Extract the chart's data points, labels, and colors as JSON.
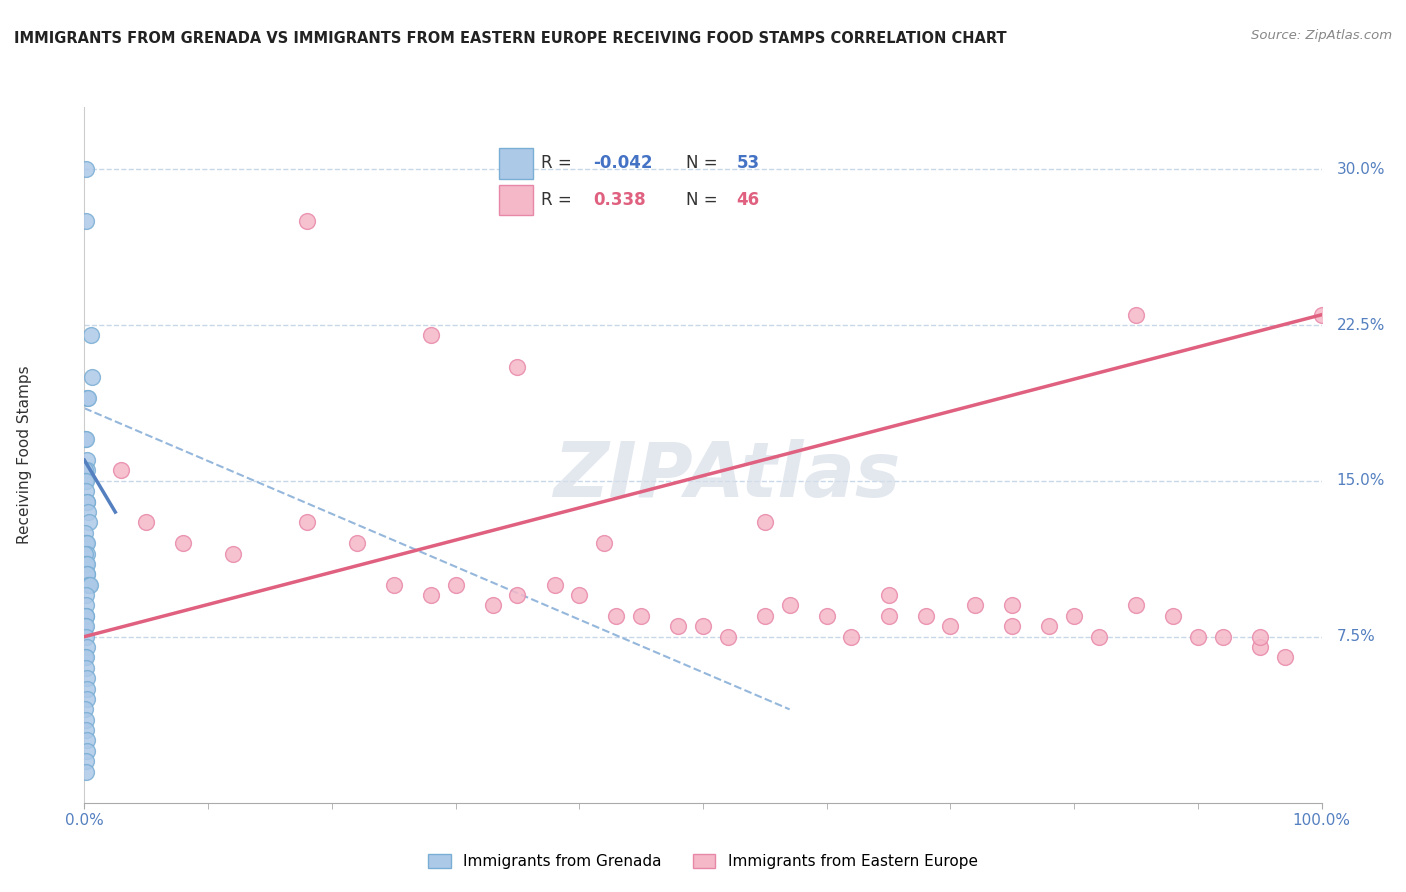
{
  "title": "IMMIGRANTS FROM GRENADA VS IMMIGRANTS FROM EASTERN EUROPE RECEIVING FOOD STAMPS CORRELATION CHART",
  "source": "Source: ZipAtlas.com",
  "ylabel": "Receiving Food Stamps",
  "xlim": [
    0.0,
    100.0
  ],
  "ylim": [
    -0.005,
    0.33
  ],
  "yticks": [
    0.075,
    0.15,
    0.225,
    0.3
  ],
  "ytick_labels": [
    "7.5%",
    "15.0%",
    "22.5%",
    "30.0%"
  ],
  "xtick_labels": [
    "0.0%",
    "100.0%"
  ],
  "series1_color": "#adc9e8",
  "series1_edge": "#7aaed4",
  "series2_color": "#f5b8c8",
  "series2_edge": "#e888a8",
  "trendline1_color": "#5580c0",
  "trendline2_color": "#e06080",
  "diag_color": "#8ab0d8",
  "watermark": "ZIPAtlas",
  "watermark_color": "#d8dfe8",
  "background": "#ffffff",
  "grid_color": "#c8d8e8",
  "series1_label": "Immigrants from Grenada",
  "series2_label": "Immigrants from Eastern Europe",
  "grenada_x": [
    0.1,
    0.15,
    0.5,
    0.6,
    0.2,
    0.3,
    0.08,
    0.12,
    0.18,
    0.22,
    0.06,
    0.09,
    0.15,
    0.12,
    0.18,
    0.25,
    0.3,
    0.4,
    0.09,
    0.12,
    0.15,
    0.18,
    0.22,
    0.09,
    0.12,
    0.15,
    0.18,
    0.22,
    0.25,
    0.28,
    0.35,
    0.42,
    0.12,
    0.15,
    0.12,
    0.15,
    0.09,
    0.12,
    0.15,
    0.18,
    0.09,
    0.12,
    0.15,
    0.18,
    0.22,
    0.25,
    0.09,
    0.12,
    0.15,
    0.18,
    0.22,
    0.12,
    0.15
  ],
  "grenada_y": [
    0.3,
    0.275,
    0.22,
    0.2,
    0.19,
    0.19,
    0.17,
    0.17,
    0.16,
    0.155,
    0.155,
    0.15,
    0.15,
    0.145,
    0.14,
    0.14,
    0.135,
    0.13,
    0.125,
    0.12,
    0.12,
    0.12,
    0.115,
    0.115,
    0.11,
    0.11,
    0.11,
    0.105,
    0.105,
    0.1,
    0.1,
    0.1,
    0.095,
    0.09,
    0.085,
    0.085,
    0.08,
    0.08,
    0.075,
    0.07,
    0.065,
    0.065,
    0.06,
    0.055,
    0.05,
    0.045,
    0.04,
    0.035,
    0.03,
    0.025,
    0.02,
    0.015,
    0.01
  ],
  "eastern_x": [
    3.0,
    5.0,
    8.0,
    12.0,
    18.0,
    22.0,
    25.0,
    28.0,
    30.0,
    33.0,
    35.0,
    38.0,
    40.0,
    43.0,
    45.0,
    48.0,
    50.0,
    52.0,
    55.0,
    57.0,
    60.0,
    62.0,
    65.0,
    68.0,
    70.0,
    72.0,
    75.0,
    78.0,
    80.0,
    82.0,
    85.0,
    88.0,
    90.0,
    92.0,
    95.0,
    97.0,
    100.0,
    18.0,
    28.0,
    35.0,
    42.0,
    55.0,
    65.0,
    75.0,
    85.0,
    95.0
  ],
  "eastern_y": [
    0.155,
    0.13,
    0.12,
    0.115,
    0.13,
    0.12,
    0.1,
    0.095,
    0.1,
    0.09,
    0.095,
    0.1,
    0.095,
    0.085,
    0.085,
    0.08,
    0.08,
    0.075,
    0.085,
    0.09,
    0.085,
    0.075,
    0.085,
    0.085,
    0.08,
    0.09,
    0.08,
    0.08,
    0.085,
    0.075,
    0.23,
    0.085,
    0.075,
    0.075,
    0.07,
    0.065,
    0.23,
    0.275,
    0.22,
    0.205,
    0.12,
    0.13,
    0.095,
    0.09,
    0.09,
    0.075
  ],
  "grenada_trend_x": [
    0.0,
    2.5
  ],
  "grenada_trend_y": [
    0.16,
    0.135
  ],
  "eastern_trend_x": [
    0.0,
    100.0
  ],
  "eastern_trend_y": [
    0.075,
    0.23
  ],
  "diag_trend_x": [
    0.0,
    57.0
  ],
  "diag_trend_y": [
    0.185,
    0.04
  ]
}
